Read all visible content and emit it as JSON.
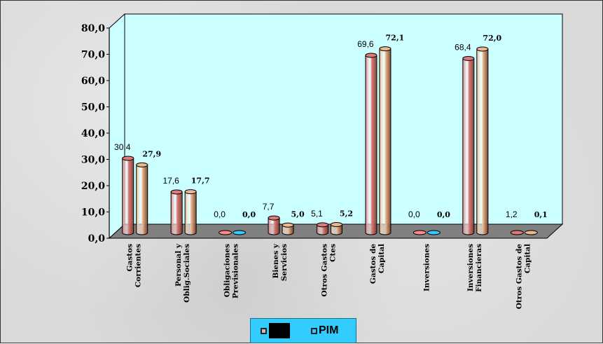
{
  "chart_data": {
    "type": "bar",
    "ylim": [
      0,
      80
    ],
    "yticks": [
      "0,0",
      "10,0",
      "20,0",
      "30,0",
      "40,0",
      "50,0",
      "60,0",
      "70,0",
      "80,0"
    ],
    "categories": [
      [
        "Gastos",
        "Corrientes"
      ],
      [
        "Personal y",
        "Oblig.Sociales"
      ],
      [
        "Obligaciones",
        "Previsionales"
      ],
      [
        "Bienes y",
        "Servicios"
      ],
      [
        "Otros Gastos",
        "Ctes"
      ],
      [
        "Gastos de",
        "Capital"
      ],
      [
        "Inversiones"
      ],
      [
        "Inversiones",
        "Financieras"
      ],
      [
        "Otros Gastos de",
        "Capital"
      ]
    ],
    "series": [
      {
        "name": "",
        "color": "#e07a7a",
        "values": [
          30.4,
          17.6,
          0.0,
          7.7,
          5.1,
          69.6,
          0.0,
          68.4,
          1.2
        ],
        "labels": [
          "30,4",
          "17,6",
          "0,0",
          "7,7",
          "5,1",
          "69,6",
          "0,0",
          "68,4",
          "1,2"
        ]
      },
      {
        "name": "PIM",
        "color": "#e9b98e",
        "values": [
          27.9,
          17.7,
          0.0,
          5.0,
          5.2,
          72.1,
          0.0,
          72.0,
          0.1
        ],
        "labels": [
          "27,9",
          "17,7",
          "0,0",
          "5,0",
          "5,2",
          "72,1",
          "0,0",
          "72,0",
          "0,1"
        ]
      }
    ],
    "legend": {
      "position": "bottom",
      "label_2": "PIM"
    },
    "colors": {
      "wall": "#ccffff",
      "floor": "#808080",
      "legend_bg": "#33ccff"
    }
  }
}
